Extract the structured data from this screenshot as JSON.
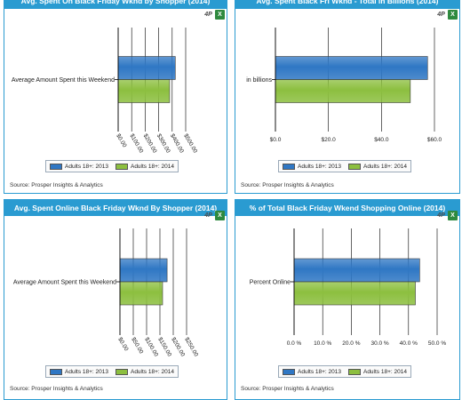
{
  "colors": {
    "header": "#2a9bd1",
    "series_2013": "#2f77c4",
    "series_2014": "#8cbf3f",
    "grid": "#000000"
  },
  "tools": {
    "pdf_icon": "pdf-icon",
    "excel_icon": "excel-icon",
    "pdf_glyph": "4P",
    "xls_glyph": "X"
  },
  "source_text": "Source: Prosper Insights & Analytics",
  "chart_data": [
    {
      "type": "bar",
      "orientation": "horizontal",
      "title": "Avg. Spent On Black Friday Wknd by Shopper (2014)",
      "categories": [
        "Average Amount Spent this Weekend"
      ],
      "series": [
        {
          "name": "Adults 18+: 2013",
          "values": [
            423
          ]
        },
        {
          "name": "Adults 18+: 2014",
          "values": [
            381
          ]
        }
      ],
      "xlim": [
        0,
        500
      ],
      "ticks": [
        0,
        100,
        200,
        300,
        400,
        500
      ],
      "tick_labels": [
        "$0.00",
        "$100.00",
        "$200.00",
        "$300.00",
        "$400.00",
        "$500.00"
      ],
      "tick_rotation": "rotated",
      "grid": "vertical"
    },
    {
      "type": "bar",
      "orientation": "horizontal",
      "title": "Avg. Spent Black Fri Wknd - Total in Billions (2014)",
      "categories": [
        "in billions"
      ],
      "series": [
        {
          "name": "Adults 18+: 2013",
          "values": [
            57.4
          ]
        },
        {
          "name": "Adults 18+: 2014",
          "values": [
            50.9
          ]
        }
      ],
      "xlim": [
        0,
        60
      ],
      "ticks": [
        0,
        20,
        40,
        60
      ],
      "tick_labels": [
        "$0.0",
        "$20.0",
        "$40.0",
        "$60.0"
      ],
      "tick_rotation": "none",
      "grid": "vertical"
    },
    {
      "type": "bar",
      "orientation": "horizontal",
      "title": "Avg. Spent Online Black Friday Wknd By Shopper (2014)",
      "categories": [
        "Average Amount Spent this Weekend"
      ],
      "series": [
        {
          "name": "Adults 18+: 2013",
          "values": [
            177
          ]
        },
        {
          "name": "Adults 18+: 2014",
          "values": [
            160
          ]
        }
      ],
      "xlim": [
        0,
        250
      ],
      "ticks": [
        0,
        50,
        100,
        150,
        200,
        250
      ],
      "tick_labels": [
        "$0.00",
        "$50.00",
        "$100.00",
        "$150.00",
        "$200.00",
        "$250.00"
      ],
      "tick_rotation": "rotated",
      "grid": "vertical"
    },
    {
      "type": "bar",
      "orientation": "horizontal",
      "title": "% of Total Black Friday Wkend Shopping Online (2014)",
      "categories": [
        "Percent Online"
      ],
      "series": [
        {
          "name": "Adults 18+: 2013",
          "values": [
            43.9
          ]
        },
        {
          "name": "Adults 18+: 2014",
          "values": [
            42.4
          ]
        }
      ],
      "xlim": [
        0,
        50
      ],
      "ticks": [
        0,
        10,
        20,
        30,
        40,
        50
      ],
      "tick_labels": [
        "0.0 %",
        "10.0 %",
        "20.0 %",
        "30.0 %",
        "40.0 %",
        "50.0 %"
      ],
      "tick_rotation": "none",
      "grid": "vertical"
    }
  ]
}
